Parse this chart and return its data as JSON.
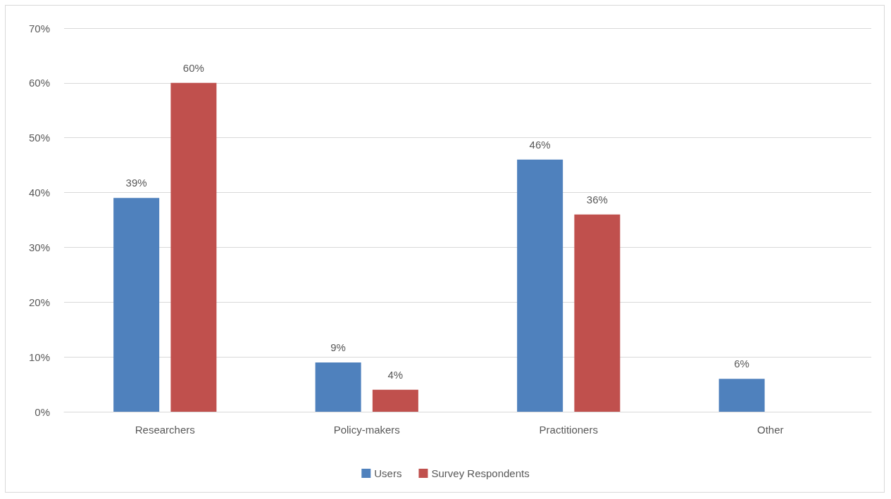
{
  "chart_data": {
    "type": "bar",
    "categories": [
      "Researchers",
      "Policy-makers",
      "Practitioners",
      "Other"
    ],
    "series": [
      {
        "name": "Users",
        "color": "#4f81bd",
        "values": [
          39,
          9,
          46,
          6
        ],
        "value_labels": [
          "39%",
          "9%",
          "46%",
          "6%"
        ]
      },
      {
        "name": "Survey Respondents",
        "color": "#c0504d",
        "values": [
          60,
          4,
          36,
          null
        ],
        "value_labels": [
          "60%",
          "4%",
          "36%",
          null
        ]
      }
    ],
    "ylim": [
      0,
      70
    ],
    "yticks": [
      {
        "value": 0,
        "label": "0%"
      },
      {
        "value": 10,
        "label": "10%"
      },
      {
        "value": 20,
        "label": "20%"
      },
      {
        "value": 30,
        "label": "30%"
      },
      {
        "value": 40,
        "label": "40%"
      },
      {
        "value": 50,
        "label": "50%"
      },
      {
        "value": 60,
        "label": "60%"
      },
      {
        "value": 70,
        "label": "70%"
      }
    ],
    "grid": "y",
    "legend": "bottom"
  }
}
